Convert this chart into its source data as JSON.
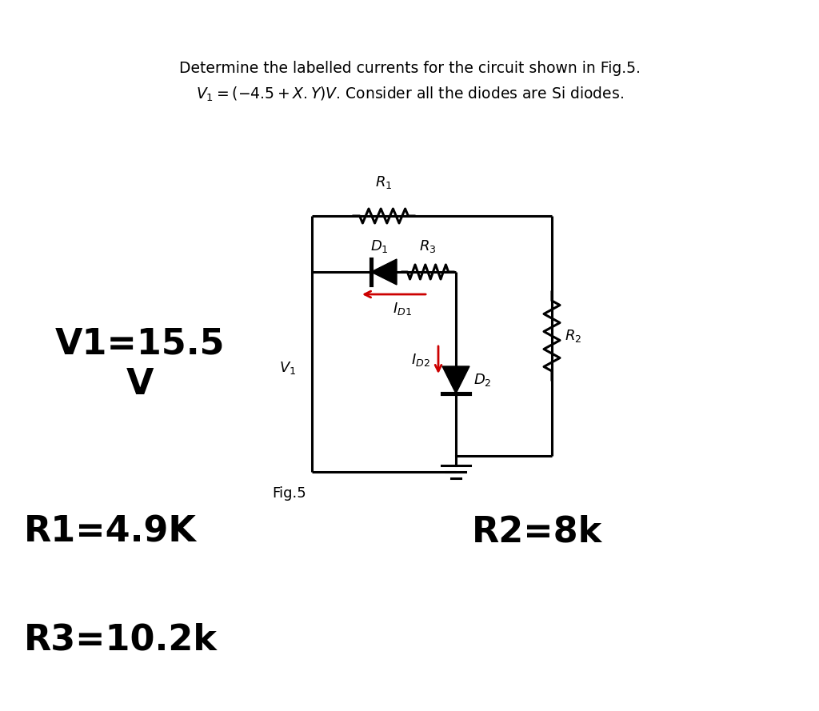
{
  "bg_color": "#ffffff",
  "title_line1": "Determine the labelled currents for the circuit shown in Fig.5.",
  "title_line2": "$V_1 = (-4.5 + X.Y)V$. Consider all the diodes are Si diodes.",
  "v1_label": "V1=15.5\nV",
  "v1_sub": "$V_1$",
  "fig_label": "Fig.5",
  "r1_label": "$R_1$",
  "r3_label": "$R_3$",
  "d1_label": "$D_1$",
  "d2_label": "$D_2$",
  "r2_label": "$R_2$",
  "id1_label": "$I_{D1}$",
  "id2_label": "$I_{D2}$",
  "r1_val": "R1=4.9K",
  "r2_val": "R2=8k",
  "r3_val": "R3=10.2k",
  "wire_color": "#000000",
  "arrow_color": "#cc0000",
  "component_color": "#000000",
  "font_size_title": 13.5,
  "font_size_circuit_labels": 13,
  "font_size_large": 32,
  "font_size_medium": 18
}
